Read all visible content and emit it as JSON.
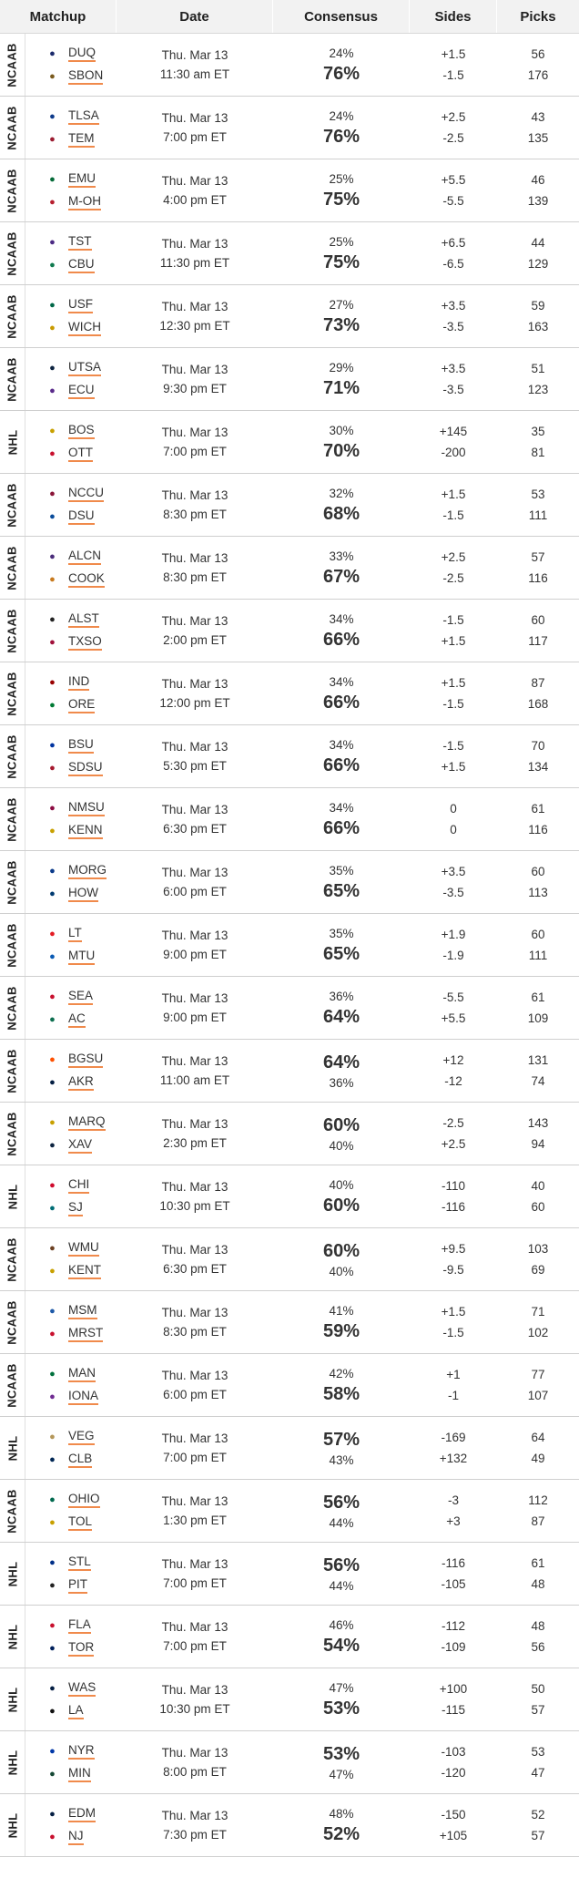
{
  "header": {
    "matchup": "Matchup",
    "date": "Date",
    "consensus": "Consensus",
    "sides": "Sides",
    "picks": "Picks"
  },
  "colors": {
    "underline": "#f08a4b",
    "header_bg": "#f2f2f2",
    "row_border": "#cfcfcf"
  },
  "rows": [
    {
      "league": "NCAAB",
      "away": "DUQ",
      "home": "SBON",
      "day": "Thu. Mar 13",
      "time": "11:30 am ET",
      "away_pct": "24%",
      "home_pct": "76%",
      "away_side": "+1.5",
      "home_side": "-1.5",
      "away_picks": "56",
      "home_picks": "176",
      "fav": "home",
      "away_icon": "duq-logo-icon",
      "home_icon": "sbon-logo-icon",
      "away_color": "#1b2a6b",
      "home_color": "#7a5a1e"
    },
    {
      "league": "NCAAB",
      "away": "TLSA",
      "home": "TEM",
      "day": "Thu. Mar 13",
      "time": "7:00 pm ET",
      "away_pct": "24%",
      "home_pct": "76%",
      "away_side": "+2.5",
      "home_side": "-2.5",
      "away_picks": "43",
      "home_picks": "135",
      "fav": "home",
      "away_icon": "tlsa-logo-icon",
      "home_icon": "tem-logo-icon",
      "away_color": "#0e3a8a",
      "home_color": "#9b1b30"
    },
    {
      "league": "NCAAB",
      "away": "EMU",
      "home": "M-OH",
      "day": "Thu. Mar 13",
      "time": "4:00 pm ET",
      "away_pct": "25%",
      "home_pct": "75%",
      "away_side": "+5.5",
      "home_side": "-5.5",
      "away_picks": "46",
      "home_picks": "139",
      "fav": "home",
      "away_icon": "emu-logo-icon",
      "home_icon": "m-oh-logo-icon",
      "away_color": "#046a38",
      "home_color": "#b61e2e"
    },
    {
      "league": "NCAAB",
      "away": "TST",
      "home": "CBU",
      "day": "Thu. Mar 13",
      "time": "11:30 pm ET",
      "away_pct": "25%",
      "home_pct": "75%",
      "away_side": "+6.5",
      "home_side": "-6.5",
      "away_picks": "44",
      "home_picks": "129",
      "fav": "home",
      "away_icon": "tst-logo-icon",
      "home_icon": "cbu-logo-icon",
      "away_color": "#4b2a83",
      "home_color": "#0f7a4e"
    },
    {
      "league": "NCAAB",
      "away": "USF",
      "home": "WICH",
      "day": "Thu. Mar 13",
      "time": "12:30 pm ET",
      "away_pct": "27%",
      "home_pct": "73%",
      "away_side": "+3.5",
      "home_side": "-3.5",
      "away_picks": "59",
      "home_picks": "163",
      "fav": "home",
      "away_icon": "usf-logo-icon",
      "home_icon": "wich-logo-icon",
      "away_color": "#006747",
      "home_color": "#c89a00"
    },
    {
      "league": "NCAAB",
      "away": "UTSA",
      "home": "ECU",
      "day": "Thu. Mar 13",
      "time": "9:30 pm ET",
      "away_pct": "29%",
      "home_pct": "71%",
      "away_side": "+3.5",
      "home_side": "-3.5",
      "away_picks": "51",
      "home_picks": "123",
      "fav": "home",
      "away_icon": "utsa-logo-icon",
      "home_icon": "ecu-logo-icon",
      "away_color": "#0c2340",
      "home_color": "#592a8a"
    },
    {
      "league": "NHL",
      "away": "BOS",
      "home": "OTT",
      "day": "Thu. Mar 13",
      "time": "7:00 pm ET",
      "away_pct": "30%",
      "home_pct": "70%",
      "away_side": "+145",
      "home_side": "-200",
      "away_picks": "35",
      "home_picks": "81",
      "fav": "home",
      "away_icon": "bos-logo-icon",
      "home_icon": "ott-logo-icon",
      "away_color": "#c8a000",
      "home_color": "#c8102e"
    },
    {
      "league": "NCAAB",
      "away": "NCCU",
      "home": "DSU",
      "day": "Thu. Mar 13",
      "time": "8:30 pm ET",
      "away_pct": "32%",
      "home_pct": "68%",
      "away_side": "+1.5",
      "home_side": "-1.5",
      "away_picks": "53",
      "home_picks": "111",
      "fav": "home",
      "away_icon": "nccu-logo-icon",
      "home_icon": "dsu-logo-icon",
      "away_color": "#8a1538",
      "home_color": "#0a4c9a"
    },
    {
      "league": "NCAAB",
      "away": "ALCN",
      "home": "COOK",
      "day": "Thu. Mar 13",
      "time": "8:30 pm ET",
      "away_pct": "33%",
      "home_pct": "67%",
      "away_side": "+2.5",
      "home_side": "-2.5",
      "away_picks": "57",
      "home_picks": "116",
      "fav": "home",
      "away_icon": "alcn-logo-icon",
      "home_icon": "cook-logo-icon",
      "away_color": "#4a2c7a",
      "home_color": "#c87a1e"
    },
    {
      "league": "NCAAB",
      "away": "ALST",
      "home": "TXSO",
      "day": "Thu. Mar 13",
      "time": "2:00 pm ET",
      "away_pct": "34%",
      "home_pct": "66%",
      "away_side": "-1.5",
      "home_side": "+1.5",
      "away_picks": "60",
      "home_picks": "117",
      "fav": "home",
      "away_icon": "alst-logo-icon",
      "home_icon": "txso-logo-icon",
      "away_color": "#222222",
      "home_color": "#a0103a"
    },
    {
      "league": "NCAAB",
      "away": "IND",
      "home": "ORE",
      "day": "Thu. Mar 13",
      "time": "12:00 pm ET",
      "away_pct": "34%",
      "home_pct": "66%",
      "away_side": "+1.5",
      "home_side": "-1.5",
      "away_picks": "87",
      "home_picks": "168",
      "fav": "home",
      "away_icon": "ind-logo-icon",
      "home_icon": "ore-logo-icon",
      "away_color": "#990000",
      "home_color": "#007a33"
    },
    {
      "league": "NCAAB",
      "away": "BSU",
      "home": "SDSU",
      "day": "Thu. Mar 13",
      "time": "5:30 pm ET",
      "away_pct": "34%",
      "home_pct": "66%",
      "away_side": "-1.5",
      "home_side": "+1.5",
      "away_picks": "70",
      "home_picks": "134",
      "fav": "home",
      "away_icon": "bsu-logo-icon",
      "home_icon": "sdsu-logo-icon",
      "away_color": "#0033a0",
      "home_color": "#a6192e"
    },
    {
      "league": "NCAAB",
      "away": "NMSU",
      "home": "KENN",
      "day": "Thu. Mar 13",
      "time": "6:30 pm ET",
      "away_pct": "34%",
      "home_pct": "66%",
      "away_side": "0",
      "home_side": "0",
      "away_picks": "61",
      "home_picks": "116",
      "fav": "home",
      "away_icon": "nmsu-logo-icon",
      "home_icon": "kenn-logo-icon",
      "away_color": "#8c0b42",
      "home_color": "#c8a000"
    },
    {
      "league": "NCAAB",
      "away": "MORG",
      "home": "HOW",
      "day": "Thu. Mar 13",
      "time": "6:00 pm ET",
      "away_pct": "35%",
      "home_pct": "65%",
      "away_side": "+3.5",
      "home_side": "-3.5",
      "away_picks": "60",
      "home_picks": "113",
      "fav": "home",
      "away_icon": "morg-logo-icon",
      "home_icon": "how-logo-icon",
      "away_color": "#0a3a8a",
      "home_color": "#003a70"
    },
    {
      "league": "NCAAB",
      "away": "LT",
      "home": "MTU",
      "day": "Thu. Mar 13",
      "time": "9:00 pm ET",
      "away_pct": "35%",
      "home_pct": "65%",
      "away_side": "+1.9",
      "home_side": "-1.9",
      "away_picks": "60",
      "home_picks": "111",
      "fav": "home",
      "away_icon": "lt-logo-icon",
      "home_icon": "mtu-logo-icon",
      "away_color": "#e31b23",
      "home_color": "#0a5ab4"
    },
    {
      "league": "NCAAB",
      "away": "SEA",
      "home": "AC",
      "day": "Thu. Mar 13",
      "time": "9:00 pm ET",
      "away_pct": "36%",
      "home_pct": "64%",
      "away_side": "-5.5",
      "home_side": "+5.5",
      "away_picks": "61",
      "home_picks": "109",
      "fav": "home",
      "away_icon": "sea-logo-icon",
      "home_icon": "ac-logo-icon",
      "away_color": "#c8102e",
      "home_color": "#0c6e4f"
    },
    {
      "league": "NCAAB",
      "away": "BGSU",
      "home": "AKR",
      "day": "Thu. Mar 13",
      "time": "11:00 am ET",
      "away_pct": "64%",
      "home_pct": "36%",
      "away_side": "+12",
      "home_side": "-12",
      "away_picks": "131",
      "home_picks": "74",
      "fav": "away",
      "away_icon": "bgsu-logo-icon",
      "home_icon": "akr-logo-icon",
      "away_color": "#fe5000",
      "home_color": "#041e42"
    },
    {
      "league": "NCAAB",
      "away": "MARQ",
      "home": "XAV",
      "day": "Thu. Mar 13",
      "time": "2:30 pm ET",
      "away_pct": "60%",
      "home_pct": "40%",
      "away_side": "-2.5",
      "home_side": "+2.5",
      "away_picks": "143",
      "home_picks": "94",
      "fav": "away",
      "away_icon": "marq-logo-icon",
      "home_icon": "xav-logo-icon",
      "away_color": "#c8a000",
      "home_color": "#0c2340"
    },
    {
      "league": "NHL",
      "away": "CHI",
      "home": "SJ",
      "day": "Thu. Mar 13",
      "time": "10:30 pm ET",
      "away_pct": "40%",
      "home_pct": "60%",
      "away_side": "-110",
      "home_side": "-116",
      "away_picks": "40",
      "home_picks": "60",
      "fav": "home",
      "away_icon": "chi-logo-icon",
      "home_icon": "sj-logo-icon",
      "away_color": "#cf0a2c",
      "home_color": "#006d75"
    },
    {
      "league": "NCAAB",
      "away": "WMU",
      "home": "KENT",
      "day": "Thu. Mar 13",
      "time": "6:30 pm ET",
      "away_pct": "60%",
      "home_pct": "40%",
      "away_side": "+9.5",
      "home_side": "-9.5",
      "away_picks": "103",
      "home_picks": "69",
      "fav": "away",
      "away_icon": "wmu-logo-icon",
      "home_icon": "kent-logo-icon",
      "away_color": "#6c4023",
      "home_color": "#c8a000"
    },
    {
      "league": "NCAAB",
      "away": "MSM",
      "home": "MRST",
      "day": "Thu. Mar 13",
      "time": "8:30 pm ET",
      "away_pct": "41%",
      "home_pct": "59%",
      "away_side": "+1.5",
      "home_side": "-1.5",
      "away_picks": "71",
      "home_picks": "102",
      "fav": "home",
      "away_icon": "msm-logo-icon",
      "home_icon": "mrst-logo-icon",
      "away_color": "#1e5aa8",
      "home_color": "#c8102e"
    },
    {
      "league": "NCAAB",
      "away": "MAN",
      "home": "IONA",
      "day": "Thu. Mar 13",
      "time": "6:00 pm ET",
      "away_pct": "42%",
      "home_pct": "58%",
      "away_side": "+1",
      "home_side": "-1",
      "away_picks": "77",
      "home_picks": "107",
      "fav": "home",
      "away_icon": "man-logo-icon",
      "home_icon": "iona-logo-icon",
      "away_color": "#00703c",
      "home_color": "#6f2c91"
    },
    {
      "league": "NHL",
      "away": "VEG",
      "home": "CLB",
      "day": "Thu. Mar 13",
      "time": "7:00 pm ET",
      "away_pct": "57%",
      "home_pct": "43%",
      "away_side": "-169",
      "home_side": "+132",
      "away_picks": "64",
      "home_picks": "49",
      "fav": "away",
      "away_icon": "veg-logo-icon",
      "home_icon": "clb-logo-icon",
      "away_color": "#b4975a",
      "home_color": "#002654"
    },
    {
      "league": "NCAAB",
      "away": "OHIO",
      "home": "TOL",
      "day": "Thu. Mar 13",
      "time": "1:30 pm ET",
      "away_pct": "56%",
      "home_pct": "44%",
      "away_side": "-3",
      "home_side": "+3",
      "away_picks": "112",
      "home_picks": "87",
      "fav": "away",
      "away_icon": "ohio-logo-icon",
      "home_icon": "tol-logo-icon",
      "away_color": "#00694e",
      "home_color": "#c8a000"
    },
    {
      "league": "NHL",
      "away": "STL",
      "home": "PIT",
      "day": "Thu. Mar 13",
      "time": "7:00 pm ET",
      "away_pct": "56%",
      "home_pct": "44%",
      "away_side": "-116",
      "home_side": "-105",
      "away_picks": "61",
      "home_picks": "48",
      "fav": "away",
      "away_icon": "stl-logo-icon",
      "home_icon": "pit-logo-icon",
      "away_color": "#002f87",
      "home_color": "#222222"
    },
    {
      "league": "NHL",
      "away": "FLA",
      "home": "TOR",
      "day": "Thu. Mar 13",
      "time": "7:00 pm ET",
      "away_pct": "46%",
      "home_pct": "54%",
      "away_side": "-112",
      "home_side": "-109",
      "away_picks": "48",
      "home_picks": "56",
      "fav": "home",
      "away_icon": "fla-logo-icon",
      "home_icon": "tor-logo-icon",
      "away_color": "#c8102e",
      "home_color": "#00205b"
    },
    {
      "league": "NHL",
      "away": "WAS",
      "home": "LA",
      "day": "Thu. Mar 13",
      "time": "10:30 pm ET",
      "away_pct": "47%",
      "home_pct": "53%",
      "away_side": "+100",
      "home_side": "-115",
      "away_picks": "50",
      "home_picks": "57",
      "fav": "home",
      "away_icon": "was-logo-icon",
      "home_icon": "la-logo-icon",
      "away_color": "#041e42",
      "home_color": "#111111"
    },
    {
      "league": "NHL",
      "away": "NYR",
      "home": "MIN",
      "day": "Thu. Mar 13",
      "time": "8:00 pm ET",
      "away_pct": "53%",
      "home_pct": "47%",
      "away_side": "-103",
      "home_side": "-120",
      "away_picks": "53",
      "home_picks": "47",
      "fav": "away",
      "away_icon": "nyr-logo-icon",
      "home_icon": "min-logo-icon",
      "away_color": "#0038a8",
      "home_color": "#154734"
    },
    {
      "league": "NHL",
      "away": "EDM",
      "home": "NJ",
      "day": "Thu. Mar 13",
      "time": "7:30 pm ET",
      "away_pct": "48%",
      "home_pct": "52%",
      "away_side": "-150",
      "home_side": "+105",
      "away_picks": "52",
      "home_picks": "57",
      "fav": "home",
      "away_icon": "edm-logo-icon",
      "home_icon": "nj-logo-icon",
      "away_color": "#041e42",
      "home_color": "#c8102e"
    }
  ]
}
